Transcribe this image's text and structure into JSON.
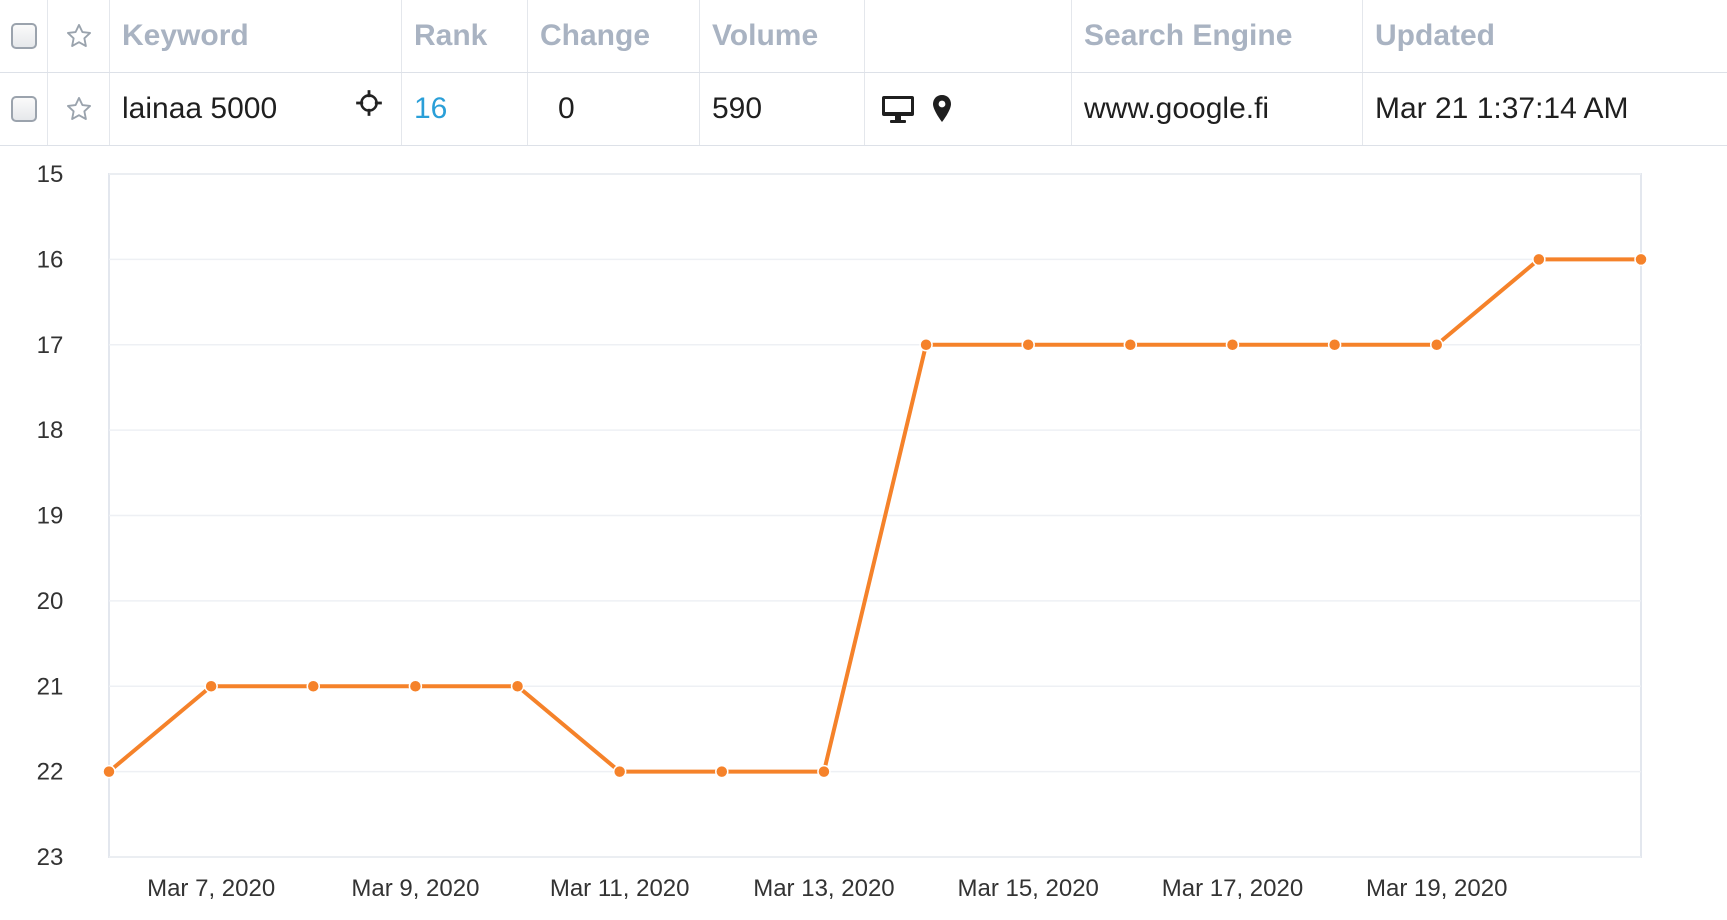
{
  "table": {
    "headers": {
      "keyword": "Keyword",
      "rank": "Rank",
      "change": "Change",
      "volume": "Volume",
      "device": "",
      "search_engine": "Search Engine",
      "updated": "Updated"
    },
    "row": {
      "keyword": "lainaa 5000",
      "rank": "16",
      "change": "0",
      "volume": "590",
      "search_engine": "www.google.fi",
      "updated": "Mar 21 1:37:14 AM",
      "device_icons": [
        "desktop-icon",
        "location-pin-icon"
      ]
    }
  },
  "colors": {
    "accent": "#2a9fd8",
    "series": "#f5822a",
    "header_text": "#a9b3c2"
  },
  "chart_data": {
    "type": "line",
    "title": "",
    "xlabel": "",
    "ylabel": "",
    "y_reversed": true,
    "ylim": [
      15,
      23
    ],
    "y_ticks": [
      "15",
      "16",
      "17",
      "18",
      "19",
      "20",
      "21",
      "22",
      "23"
    ],
    "x_tick_labels": [
      "Mar 7, 2020",
      "Mar 9, 2020",
      "Mar 11, 2020",
      "Mar 13, 2020",
      "Mar 15, 2020",
      "Mar 17, 2020",
      "Mar 19, 2020"
    ],
    "grid": true,
    "x": [
      "Mar 6, 2020",
      "Mar 7, 2020",
      "Mar 8, 2020",
      "Mar 9, 2020",
      "Mar 10, 2020",
      "Mar 11, 2020",
      "Mar 12, 2020",
      "Mar 13, 2020",
      "Mar 14, 2020",
      "Mar 15, 2020",
      "Mar 16, 2020",
      "Mar 17, 2020",
      "Mar 18, 2020",
      "Mar 19, 2020",
      "Mar 20, 2020",
      "Mar 21, 2020"
    ],
    "series": [
      {
        "values": [
          22,
          21,
          21,
          21,
          21,
          22,
          22,
          22,
          17,
          17,
          17,
          17,
          17,
          17,
          16,
          16
        ]
      }
    ]
  }
}
